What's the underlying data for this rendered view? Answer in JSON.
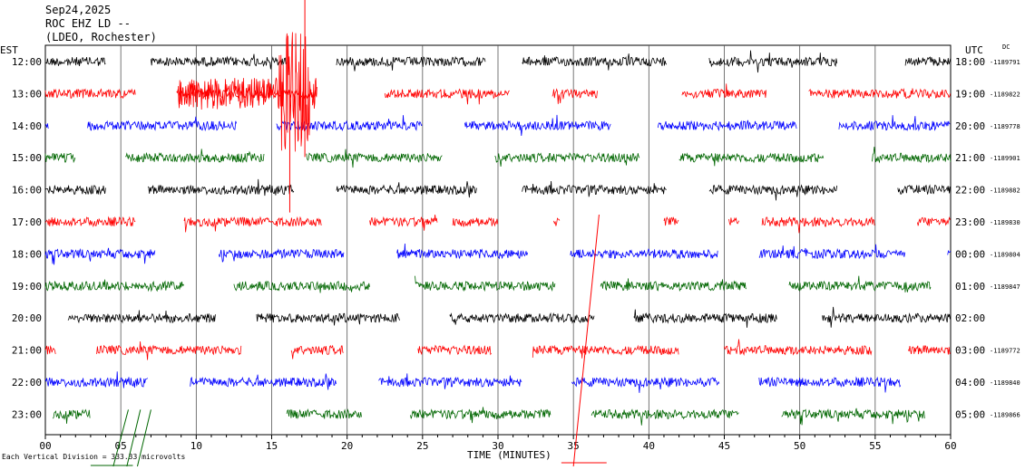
{
  "header": {
    "date": "Sep24,2025",
    "station": "ROC EHZ LD --",
    "network": "(LDEO, Rochester)"
  },
  "left_tz": "EST",
  "right_tz": "UTC",
  "dc_label": "DC",
  "footer": {
    "scale_note": "Each Vertical Division = 333.33 microvolts",
    "xlabel": "TIME (MINUTES)"
  },
  "colors": {
    "black": "#000000",
    "red": "#ff0000",
    "blue": "#0000ff",
    "green": "#006600",
    "grid": "#000000"
  },
  "chart_data": {
    "type": "line",
    "title": "",
    "xlabel": "TIME (MINUTES)",
    "xlim": [
      0,
      60
    ],
    "x_ticks": [
      "00",
      "05",
      "10",
      "15",
      "20",
      "25",
      "30",
      "35",
      "40",
      "45",
      "50",
      "55",
      "60"
    ],
    "rows": [
      {
        "local": "12:00",
        "utc": "18:00",
        "dc": "-1189791",
        "color": "black",
        "segments": [
          [
            0,
            4
          ],
          [
            7,
            16
          ],
          [
            19.3,
            29.2
          ],
          [
            31.6,
            41.2
          ],
          [
            44,
            52.5
          ],
          [
            57,
            60
          ]
        ]
      },
      {
        "local": "13:00",
        "utc": "19:00",
        "dc": "-1189822",
        "color": "red",
        "segments": [
          [
            0,
            6
          ],
          [
            8.7,
            18
          ],
          [
            22.5,
            30.8
          ],
          [
            33.6,
            36.6
          ],
          [
            42.2,
            47.8
          ],
          [
            50.6,
            60
          ]
        ]
      },
      {
        "local": "14:00",
        "utc": "20:00",
        "dc": "-1189778",
        "color": "blue",
        "segments": [
          [
            0,
            0.2
          ],
          [
            2.8,
            12.7
          ],
          [
            15.3,
            25
          ],
          [
            27.8,
            37.5
          ],
          [
            40.6,
            49.8
          ],
          [
            52.6,
            60
          ]
        ]
      },
      {
        "local": "15:00",
        "utc": "21:00",
        "dc": "-1189901",
        "color": "green",
        "segments": [
          [
            0,
            2
          ],
          [
            5.3,
            14.5
          ],
          [
            17.3,
            26.3
          ],
          [
            29.8,
            39.4
          ],
          [
            42,
            51.6
          ],
          [
            54.8,
            60
          ]
        ]
      },
      {
        "local": "16:00",
        "utc": "22:00",
        "dc": "-1189882",
        "color": "black",
        "segments": [
          [
            0,
            4
          ],
          [
            6.8,
            16.5
          ],
          [
            19.3,
            28.6
          ],
          [
            31.6,
            41.2
          ],
          [
            44,
            52.5
          ],
          [
            56.5,
            60
          ]
        ]
      },
      {
        "local": "17:00",
        "utc": "23:00",
        "dc": "-1189830",
        "color": "red",
        "segments": [
          [
            0,
            6
          ],
          [
            9.2,
            18.3
          ],
          [
            21.5,
            26
          ],
          [
            27,
            30
          ],
          [
            33.7,
            34.1
          ],
          [
            41,
            42
          ],
          [
            45.3,
            46
          ],
          [
            47.5,
            55
          ],
          [
            57.8,
            60
          ]
        ]
      },
      {
        "local": "18:00",
        "utc": "00:00",
        "dc": "-1189804",
        "color": "blue",
        "segments": [
          [
            0,
            7.3
          ],
          [
            11.5,
            19.8
          ],
          [
            23.3,
            32
          ],
          [
            34.8,
            44.6
          ],
          [
            47.3,
            57
          ],
          [
            59.8,
            60
          ]
        ]
      },
      {
        "local": "19:00",
        "utc": "01:00",
        "dc": "-1189847",
        "color": "green",
        "segments": [
          [
            0,
            9.2
          ],
          [
            12.5,
            21.5
          ],
          [
            24.5,
            33.8
          ],
          [
            36.8,
            46.5
          ],
          [
            49.3,
            58.7
          ]
        ]
      },
      {
        "local": "20:00",
        "utc": "02:00",
        "dc": "",
        "color": "black",
        "segments": [
          [
            1.5,
            11.3
          ],
          [
            14,
            23.5
          ],
          [
            26.8,
            36.4
          ],
          [
            39,
            48.5
          ],
          [
            51.5,
            60
          ]
        ]
      },
      {
        "local": "21:00",
        "utc": "03:00",
        "dc": "-1189772",
        "color": "red",
        "segments": [
          [
            0,
            0.7
          ],
          [
            3.4,
            13
          ],
          [
            16.3,
            19.8
          ],
          [
            24.7,
            29.6
          ],
          [
            32.3,
            42
          ],
          [
            45,
            54.8
          ],
          [
            57.2,
            60
          ]
        ]
      },
      {
        "local": "22:00",
        "utc": "04:00",
        "dc": "-1189840",
        "color": "blue",
        "segments": [
          [
            0,
            6.8
          ],
          [
            9.6,
            19.3
          ],
          [
            22.1,
            31.6
          ],
          [
            34.9,
            44.7
          ],
          [
            47.3,
            56.7
          ]
        ]
      },
      {
        "local": "23:00",
        "utc": "05:00",
        "dc": "-1189866",
        "color": "green",
        "segments": [
          [
            0.5,
            3
          ],
          [
            16,
            21
          ],
          [
            24.2,
            33.5
          ],
          [
            36.2,
            46
          ],
          [
            48.8,
            58.3
          ]
        ]
      }
    ]
  }
}
